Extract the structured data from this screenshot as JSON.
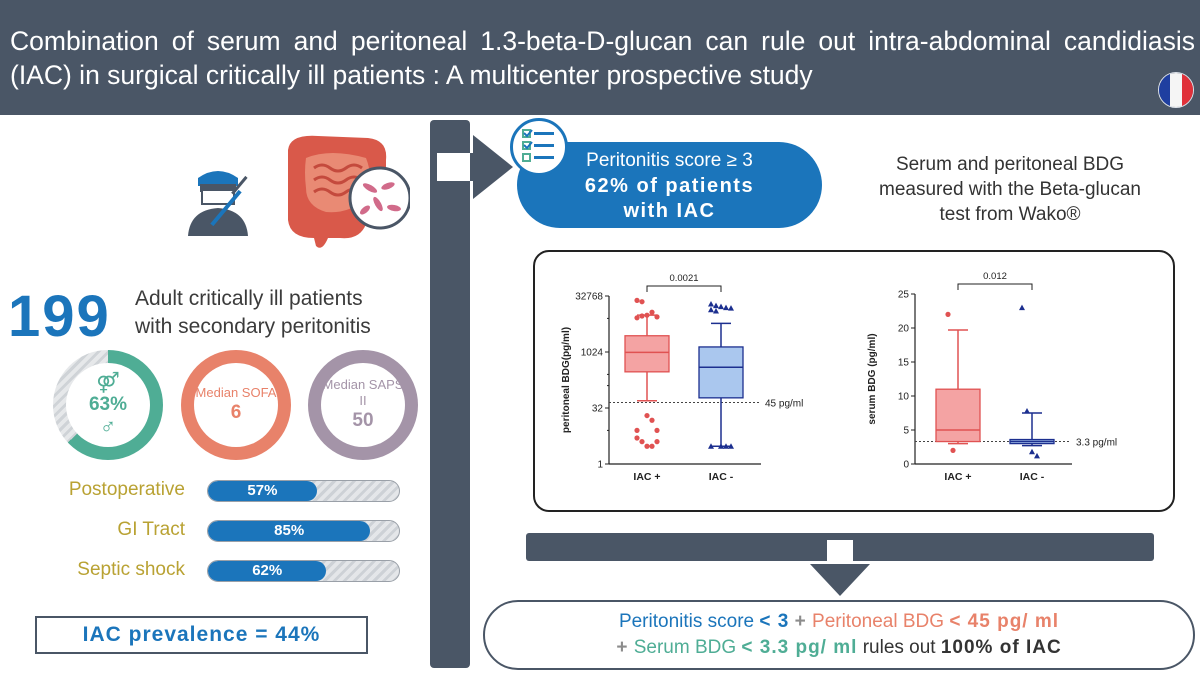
{
  "header": {
    "title": "Combination of serum and peritoneal 1.3-beta-D-glucan can rule out intra-abdominal candidiasis (IAC) in surgical critically ill patients : A multicenter prospective study"
  },
  "cohort": {
    "count": "199",
    "description_line1": "Adult critically ill patients",
    "description_line2": "with secondary peritonitis"
  },
  "rings": [
    {
      "top": "",
      "value": "63%",
      "color": "#4fad95",
      "fraction": 0.63
    },
    {
      "top": "Median SOFA",
      "value": "6",
      "color": "#e8826a",
      "fraction": 1.0
    },
    {
      "top": "Median SAPS II",
      "value": "50",
      "color": "#a494a8",
      "fraction": 1.0
    }
  ],
  "bars": [
    {
      "label": "Postoperative",
      "value": "57%",
      "fraction": 0.57
    },
    {
      "label": "GI Tract",
      "value": "85%",
      "fraction": 0.85
    },
    {
      "label": "Septic shock",
      "value": "62%",
      "fraction": 0.62
    }
  ],
  "prevalence": "IAC prevalence = 44%",
  "peritonitis": {
    "line1": "Peritonitis score ≥ 3",
    "line2": "62% of patients",
    "line3": "with IAC"
  },
  "assay": {
    "line1": "Serum and peritoneal BDG",
    "line2": "measured with the Beta-glucan",
    "line3": "test from Wako®"
  },
  "chart_data": [
    {
      "type": "box",
      "ylabel": "peritoneal BDG(pg/ml)",
      "yscale": "log2",
      "ylim": [
        1,
        32768
      ],
      "yticks": [
        "32768",
        "1024",
        "32",
        "1"
      ],
      "categories": [
        "IAC +",
        "IAC -"
      ],
      "p_value": "0.0021",
      "threshold": {
        "value": 45,
        "label": "45 pg/ml"
      },
      "series": [
        {
          "name": "IAC +",
          "color": "#e05252",
          "fill": "#f4a3a3",
          "min": 50,
          "q1": 300,
          "median": 1000,
          "q3": 2800,
          "max": 10000,
          "outliers": [
            25000,
            23000,
            10000,
            12000,
            9000,
            8500,
            9500,
            20,
            15,
            8,
            5,
            4,
            3,
            3,
            4,
            8
          ]
        },
        {
          "name": "IAC -",
          "color": "#1c2f8f",
          "fill": "#aac7ee",
          "min": 3,
          "q1": 60,
          "median": 400,
          "q3": 1400,
          "max": 6000,
          "outliers": [
            20000,
            18000,
            17000,
            16000,
            15500,
            14000,
            13000,
            3,
            3,
            3,
            3
          ]
        }
      ]
    },
    {
      "type": "box",
      "ylabel": "serum BDG (pg/ml)",
      "ylim": [
        0,
        25
      ],
      "yticks": [
        "25",
        "20",
        "15",
        "10",
        "5",
        "0"
      ],
      "categories": [
        "IAC +",
        "IAC -"
      ],
      "p_value": "0.012",
      "threshold": {
        "value": 3.3,
        "label": "3.3 pg/ml"
      },
      "series": [
        {
          "name": "IAC +",
          "color": "#e05252",
          "fill": "#f4a3a3",
          "min": 3,
          "q1": 3.3,
          "median": 5,
          "q3": 11,
          "max": 19.7,
          "outliers": [
            22,
            2
          ]
        },
        {
          "name": "IAC -",
          "color": "#1c2f8f",
          "fill": "#aac7ee",
          "min": 2.7,
          "q1": 3.0,
          "median": 3.3,
          "q3": 3.6,
          "max": 7.5,
          "outliers": [
            23,
            7.8,
            1.8,
            1.2
          ]
        }
      ]
    }
  ],
  "conclusion": {
    "p1": "Peritonitis score",
    "p2": "< 3",
    "plus1": "+",
    "p3": "Peritoneal BDG",
    "p4": "< 45 pg/ ml",
    "plus2": "+",
    "p5": "Serum BDG",
    "p6": "< 3.3 pg/ ml",
    "p7": "rules out",
    "p8": "100% of IAC"
  },
  "colors": {
    "header": "#4a5666",
    "blue": "#1b75bb",
    "orange": "#e8826a",
    "green": "#4fad95",
    "olive": "#b9a233"
  }
}
